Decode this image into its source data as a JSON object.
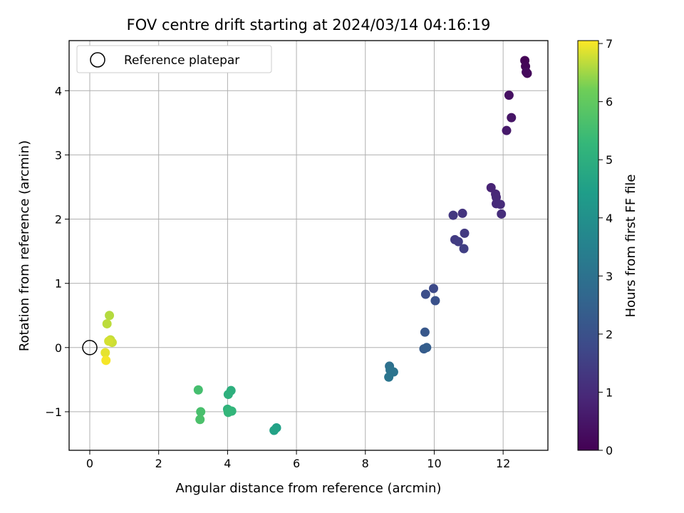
{
  "chart_data": {
    "type": "scatter",
    "title": "FOV centre drift starting at 2024/03/14 04:16:19",
    "xlabel": "Angular distance from reference (arcmin)",
    "ylabel": "Rotation from reference (arcmin)",
    "xlim": [
      -0.6,
      13.3
    ],
    "ylim": [
      -1.6,
      4.78
    ],
    "xticks": [
      "0",
      "2",
      "4",
      "6",
      "8",
      "10",
      "12"
    ],
    "yticks": [
      "−1",
      "0",
      "1",
      "2",
      "3",
      "4"
    ],
    "grid": true,
    "legend": {
      "position": "top-left",
      "entries": [
        "Reference platepar"
      ]
    },
    "colorbar": {
      "label": "Hours from first FF file",
      "colormap": "viridis",
      "range": [
        0,
        7.05
      ],
      "ticks": [
        "0",
        "1",
        "2",
        "3",
        "4",
        "5",
        "6",
        "7"
      ]
    },
    "reference_point": {
      "x": 0,
      "y": 0
    },
    "points": [
      {
        "x": 12.63,
        "y": 4.47,
        "t": 0.05
      },
      {
        "x": 12.65,
        "y": 4.38,
        "t": 0.1
      },
      {
        "x": 12.7,
        "y": 4.27,
        "t": 0.15
      },
      {
        "x": 12.67,
        "y": 4.29,
        "t": 0.2
      },
      {
        "x": 12.17,
        "y": 3.93,
        "t": 0.35
      },
      {
        "x": 12.24,
        "y": 3.58,
        "t": 0.45
      },
      {
        "x": 12.1,
        "y": 3.38,
        "t": 0.55
      },
      {
        "x": 11.65,
        "y": 2.49,
        "t": 0.8
      },
      {
        "x": 11.78,
        "y": 2.39,
        "t": 0.85
      },
      {
        "x": 11.8,
        "y": 2.34,
        "t": 0.9
      },
      {
        "x": 11.8,
        "y": 2.24,
        "t": 0.95
      },
      {
        "x": 11.92,
        "y": 2.23,
        "t": 1.0
      },
      {
        "x": 11.95,
        "y": 2.08,
        "t": 1.05
      },
      {
        "x": 10.82,
        "y": 2.09,
        "t": 1.2
      },
      {
        "x": 10.55,
        "y": 2.06,
        "t": 1.3
      },
      {
        "x": 10.88,
        "y": 1.78,
        "t": 1.35
      },
      {
        "x": 10.6,
        "y": 1.68,
        "t": 1.4
      },
      {
        "x": 10.7,
        "y": 1.65,
        "t": 1.45
      },
      {
        "x": 10.86,
        "y": 1.54,
        "t": 1.5
      },
      {
        "x": 9.98,
        "y": 0.92,
        "t": 1.8
      },
      {
        "x": 9.75,
        "y": 0.83,
        "t": 1.9
      },
      {
        "x": 10.03,
        "y": 0.73,
        "t": 2.0
      },
      {
        "x": 9.73,
        "y": 0.24,
        "t": 2.2
      },
      {
        "x": 9.7,
        "y": -0.02,
        "t": 2.3
      },
      {
        "x": 9.78,
        "y": 0.0,
        "t": 2.35
      },
      {
        "x": 8.7,
        "y": -0.29,
        "t": 2.9
      },
      {
        "x": 8.72,
        "y": -0.35,
        "t": 3.0
      },
      {
        "x": 8.82,
        "y": -0.38,
        "t": 3.05
      },
      {
        "x": 8.68,
        "y": -0.46,
        "t": 3.1
      },
      {
        "x": 5.42,
        "y": -1.25,
        "t": 4.5
      },
      {
        "x": 5.35,
        "y": -1.29,
        "t": 4.55
      },
      {
        "x": 4.1,
        "y": -0.67,
        "t": 5.0
      },
      {
        "x": 4.02,
        "y": -0.73,
        "t": 5.05
      },
      {
        "x": 4.0,
        "y": -0.96,
        "t": 5.1
      },
      {
        "x": 4.05,
        "y": -0.98,
        "t": 5.15
      },
      {
        "x": 4.12,
        "y": -0.99,
        "t": 5.2
      },
      {
        "x": 4.02,
        "y": -1.01,
        "t": 5.25
      },
      {
        "x": 3.15,
        "y": -0.66,
        "t": 5.55
      },
      {
        "x": 3.22,
        "y": -1.0,
        "t": 5.6
      },
      {
        "x": 3.2,
        "y": -1.12,
        "t": 5.65
      },
      {
        "x": 0.57,
        "y": 0.5,
        "t": 6.6
      },
      {
        "x": 0.5,
        "y": 0.37,
        "t": 6.65
      },
      {
        "x": 0.6,
        "y": 0.12,
        "t": 6.7
      },
      {
        "x": 0.65,
        "y": 0.08,
        "t": 6.75
      },
      {
        "x": 0.55,
        "y": 0.1,
        "t": 6.8
      },
      {
        "x": 0.45,
        "y": -0.08,
        "t": 6.9
      },
      {
        "x": 0.47,
        "y": -0.2,
        "t": 7.0
      }
    ]
  }
}
